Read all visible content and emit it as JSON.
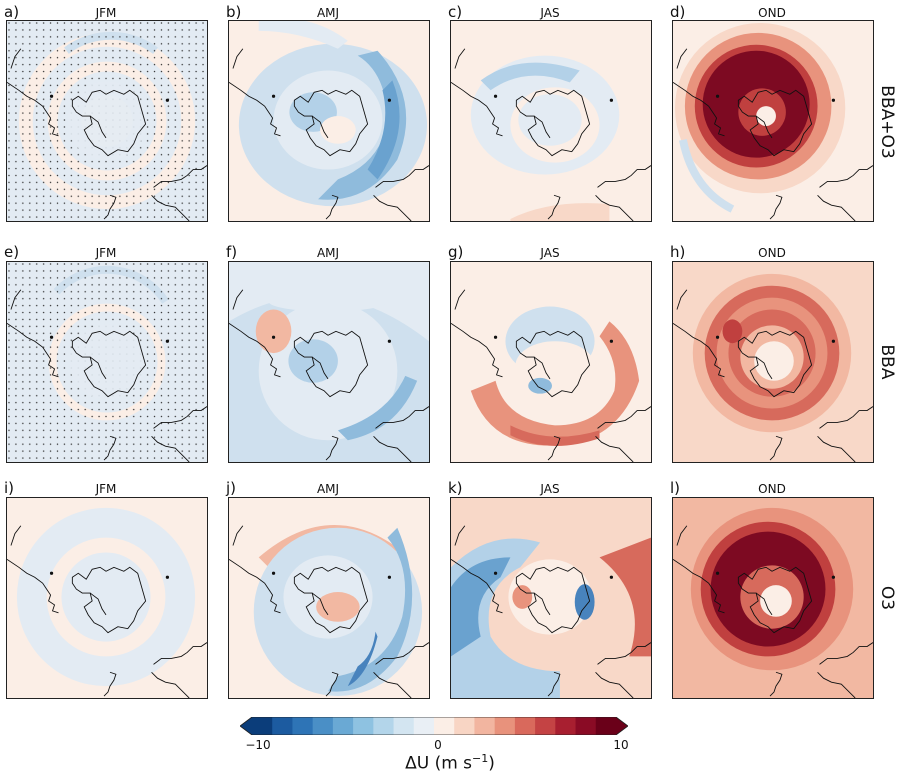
{
  "figure": {
    "row_labels": [
      "BBA+O3",
      "BBA",
      "O3"
    ],
    "colorbar": {
      "ticks": [
        "−10",
        "0",
        "10"
      ],
      "label": "ΔU (m s",
      "label_sup": "−1",
      "label_close": ")",
      "colors": [
        "#0b3d7a",
        "#1c5ba0",
        "#2e74b6",
        "#4a8fc6",
        "#6aa9d4",
        "#8ec2e1",
        "#b3d5ea",
        "#d3e5f1",
        "#e9eff5",
        "#fbeee6",
        "#f8d5c4",
        "#f2b5a0",
        "#e8927c",
        "#d9695c",
        "#c44344",
        "#a81f30",
        "#8a0b25",
        "#6a0019"
      ]
    },
    "panels": [
      {
        "label": "a)",
        "season": "JFM",
        "field": "a"
      },
      {
        "label": "b)",
        "season": "AMJ",
        "field": "b"
      },
      {
        "label": "c)",
        "season": "JAS",
        "field": "c"
      },
      {
        "label": "d)",
        "season": "OND",
        "field": "d"
      },
      {
        "label": "e)",
        "season": "JFM",
        "field": "e"
      },
      {
        "label": "f)",
        "season": "AMJ",
        "field": "f"
      },
      {
        "label": "g)",
        "season": "JAS",
        "field": "g"
      },
      {
        "label": "h)",
        "season": "OND",
        "field": "h"
      },
      {
        "label": "i)",
        "season": "JFM",
        "field": "i"
      },
      {
        "label": "j)",
        "season": "AMJ",
        "field": "j"
      },
      {
        "label": "k)",
        "season": "JAS",
        "field": "k"
      },
      {
        "label": "l)",
        "season": "OND",
        "field": "l"
      }
    ]
  }
}
